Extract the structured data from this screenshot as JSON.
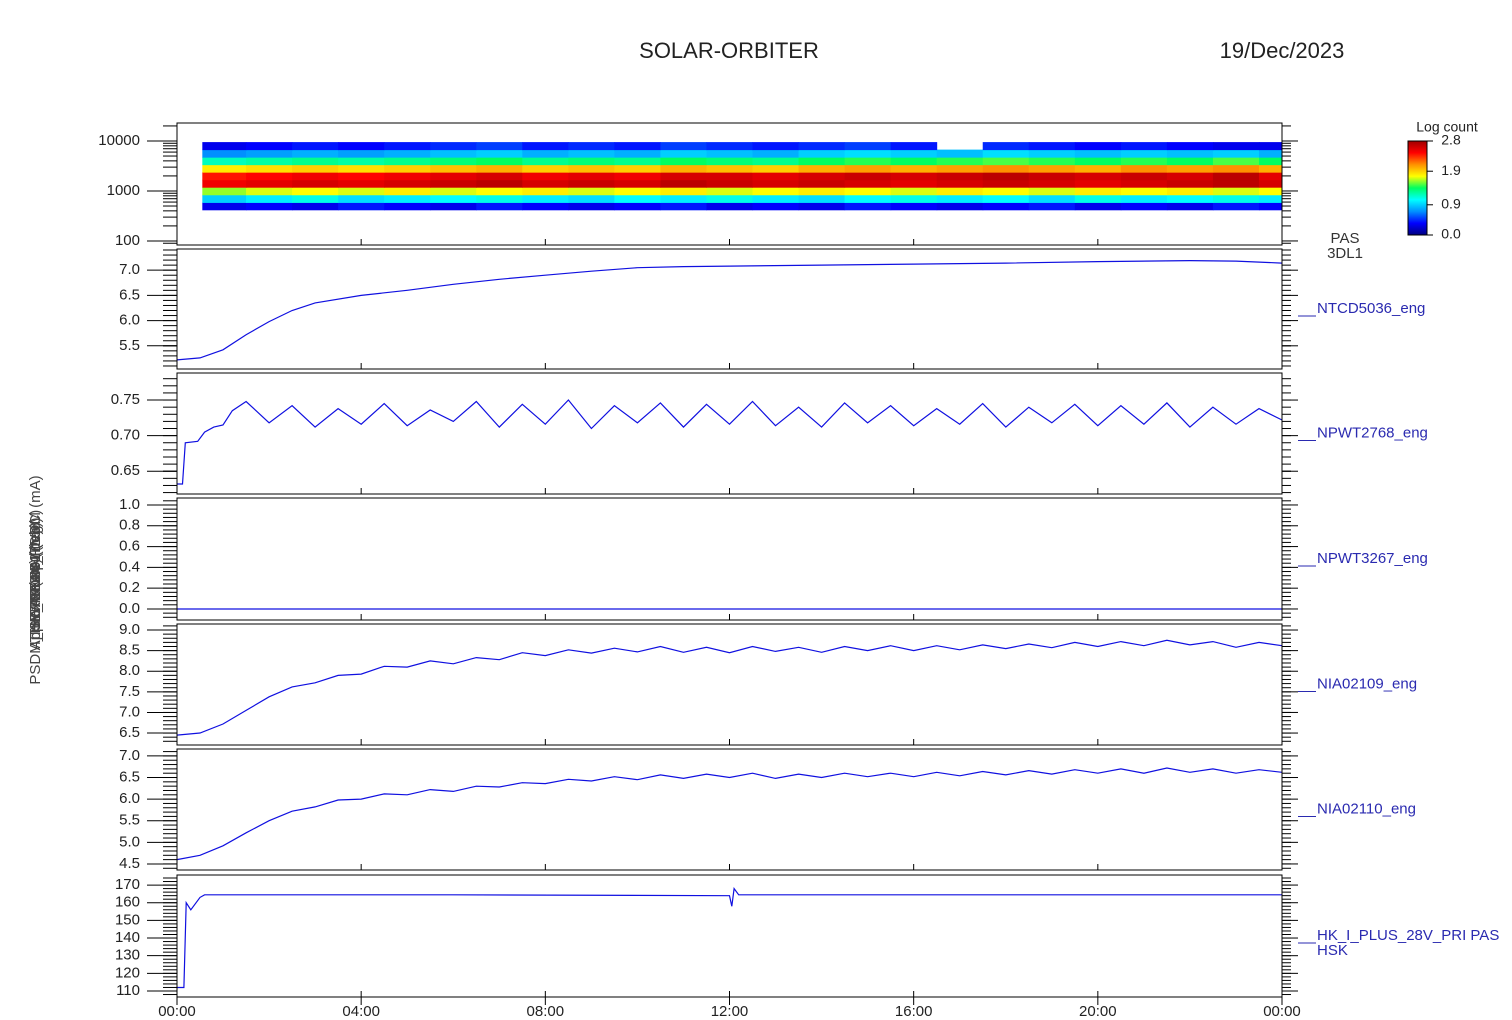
{
  "header": {
    "title": "SOLAR-ORBITER",
    "date": "19/Dec/2023"
  },
  "chart_data": [
    {
      "type": "heatmap",
      "label": [
        "PAS",
        "3DL1"
      ],
      "ylabel": "E (eV)",
      "ylog": true,
      "ylim": [
        83,
        22900
      ],
      "yticks": [
        100,
        1000,
        10000
      ],
      "xlim": [
        0,
        24
      ],
      "bins": [
        0.55,
        1.5,
        2.5,
        3.5,
        4.5,
        5.5,
        6.5,
        7.5,
        8.5,
        9.5,
        10.5,
        11.5,
        12.5,
        13.5,
        14.5,
        15.5,
        16.5,
        17.5,
        18.5,
        19.5,
        20.5,
        21.5,
        22.5,
        23.5,
        24
      ],
      "ybins": [
        420,
        590,
        840,
        1190,
        1680,
        2380,
        3360,
        4750,
        6720,
        9500
      ],
      "z": [
        [
          0.3,
          0.35,
          0.3,
          0.4,
          0.35,
          0.3,
          0.4,
          0.35,
          0.3,
          0.35,
          0.4,
          0.3,
          0.35,
          0.3,
          0.4,
          0.35,
          0.3,
          0.35,
          0.4,
          0.3,
          0.35,
          0.3,
          0.4,
          0.35
        ],
        [
          0.9,
          1.0,
          1.1,
          0.95,
          1.0,
          1.05,
          1.1,
          1.0,
          0.95,
          1.05,
          1.0,
          1.1,
          1.0,
          0.95,
          1.05,
          1.1,
          1.0,
          1.05,
          0.95,
          1.1,
          1.0,
          1.05,
          1.1,
          1.0
        ],
        [
          1.6,
          1.7,
          1.75,
          1.7,
          1.8,
          1.7,
          1.75,
          1.8,
          1.7,
          1.75,
          1.8,
          1.7,
          1.75,
          1.8,
          1.75,
          1.7,
          1.8,
          1.75,
          1.7,
          1.8,
          1.75,
          1.8,
          1.7,
          1.75
        ],
        [
          2.5,
          2.55,
          2.6,
          2.55,
          2.6,
          2.65,
          2.7,
          2.6,
          2.65,
          2.6,
          2.7,
          2.65,
          2.6,
          2.65,
          2.6,
          2.55,
          2.6,
          2.65,
          2.6,
          2.55,
          2.6,
          2.65,
          2.7,
          2.6
        ],
        [
          2.4,
          2.45,
          2.5,
          2.45,
          2.5,
          2.55,
          2.6,
          2.5,
          2.55,
          2.5,
          2.6,
          2.6,
          2.55,
          2.6,
          2.65,
          2.6,
          2.65,
          2.7,
          2.65,
          2.6,
          2.65,
          2.6,
          2.7,
          2.55
        ],
        [
          1.8,
          1.85,
          1.9,
          1.85,
          1.9,
          1.95,
          2.0,
          1.9,
          1.95,
          1.9,
          2.0,
          1.95,
          1.9,
          2.0,
          2.05,
          2.0,
          2.05,
          2.1,
          2.05,
          2.0,
          2.1,
          2.05,
          2.1,
          2.0
        ],
        [
          1.2,
          1.25,
          1.3,
          1.25,
          1.3,
          1.35,
          1.4,
          1.3,
          1.35,
          1.3,
          1.4,
          1.35,
          1.3,
          1.4,
          1.45,
          1.4,
          1.45,
          1.5,
          1.45,
          1.4,
          1.45,
          1.4,
          1.5,
          1.4
        ],
        [
          0.7,
          0.75,
          0.8,
          0.75,
          0.8,
          0.85,
          0.9,
          0.8,
          0.85,
          0.8,
          0.9,
          0.85,
          0.8,
          0.9,
          0.95,
          0.9,
          0.85,
          0.95,
          0.9,
          0.85,
          0.9,
          0.85,
          0.9,
          0.8
        ],
        [
          0.3,
          0.35,
          0.4,
          0.35,
          0.4,
          0.45,
          0.5,
          0.4,
          0.45,
          0.4,
          0.5,
          0.45,
          0.4,
          0.45,
          0.5,
          0.4,
          null,
          0.45,
          0.4,
          0.35,
          0.4,
          0.35,
          0.3,
          0.3
        ]
      ],
      "zlabel": "Log count",
      "zlim": [
        0,
        2.8
      ],
      "zticks": [
        {
          "value": 0,
          "label": "0.0"
        },
        0.9,
        1.9,
        2.8
      ],
      "colors": [
        "#000080",
        "#0000ff",
        "#0090ff",
        "#00ffff",
        "#00ff60",
        "#ffff00",
        "#ff9000",
        "#ff0000",
        "#a00000"
      ]
    },
    {
      "type": "line",
      "label": [
        "NTCD5036_eng"
      ],
      "ylabel": "Approx Temp (DegC)",
      "ylim": [
        5.04,
        7.42
      ],
      "yticks": [
        5.5,
        {
          "value": 6,
          "label": "6.0"
        },
        6.5,
        {
          "value": 7,
          "label": "7.0"
        }
      ],
      "xlim": [
        0,
        24
      ],
      "x": [
        0,
        0.5,
        1,
        1.5,
        2,
        2.5,
        3,
        4,
        5,
        6,
        7,
        8,
        9,
        10,
        11,
        12,
        14,
        16,
        18,
        20,
        22,
        23,
        24
      ],
      "series": [
        {
          "color": "#1010e0",
          "values": [
            5.22,
            5.26,
            5.42,
            5.72,
            5.98,
            6.2,
            6.35,
            6.5,
            6.6,
            6.72,
            6.82,
            6.9,
            6.98,
            7.05,
            7.07,
            7.08,
            7.1,
            7.12,
            7.14,
            7.17,
            7.19,
            7.18,
            7.14
          ]
        }
      ]
    },
    {
      "type": "line",
      "label": [
        "NPWT2768_eng"
      ],
      "ylabel": "SWA-EAS1 (V)",
      "ylim": [
        0.618,
        0.788
      ],
      "yticks": [
        0.65,
        {
          "value": 0.7,
          "label": "0.70"
        },
        0.75
      ],
      "xlim": [
        0,
        24
      ],
      "x": [
        0,
        0.12,
        0.18,
        0.45,
        0.6,
        0.8,
        1.0,
        1.2,
        1.5,
        2,
        2.5,
        3,
        3.5,
        4,
        4.5,
        5,
        5.5,
        6,
        6.5,
        7,
        7.5,
        8,
        8.5,
        9,
        9.5,
        10,
        10.5,
        11,
        11.5,
        12,
        12.5,
        13,
        13.5,
        14,
        14.5,
        15,
        15.5,
        16,
        16.5,
        17,
        17.5,
        18,
        18.5,
        19,
        19.5,
        20,
        20.5,
        21,
        21.5,
        22,
        22.5,
        23,
        23.5,
        24
      ],
      "series": [
        {
          "color": "#1010e0",
          "values": [
            0.632,
            0.632,
            0.69,
            0.692,
            0.705,
            0.712,
            0.715,
            0.735,
            0.748,
            0.718,
            0.742,
            0.712,
            0.738,
            0.716,
            0.745,
            0.714,
            0.736,
            0.72,
            0.748,
            0.712,
            0.744,
            0.716,
            0.75,
            0.71,
            0.742,
            0.718,
            0.746,
            0.712,
            0.744,
            0.716,
            0.748,
            0.714,
            0.74,
            0.712,
            0.746,
            0.718,
            0.742,
            0.714,
            0.738,
            0.716,
            0.745,
            0.712,
            0.74,
            0.718,
            0.744,
            0.714,
            0.742,
            0.716,
            0.746,
            0.712,
            0.74,
            0.716,
            0.738,
            0.722
          ]
        }
      ]
    },
    {
      "type": "line",
      "label": [
        "NPWT3267_eng"
      ],
      "ylabel": "SWA-EAS2 (V)",
      "ylim": [
        -0.106,
        1.067
      ],
      "yticks": [
        {
          "value": 0,
          "label": "0.0"
        },
        0.2,
        0.4,
        0.6,
        0.8,
        {
          "value": 1,
          "label": "1.0"
        }
      ],
      "xlim": [
        0,
        24
      ],
      "x": [
        0,
        24
      ],
      "series": [
        {
          "color": "#1010e0",
          "values": [
            0,
            0
          ]
        }
      ]
    },
    {
      "type": "line",
      "label": [
        "NIA02109_eng"
      ],
      "ylabel": "THERM CA4 (nc6)",
      "ylim": [
        6.21,
        9.146
      ],
      "yticks": [
        6.5,
        {
          "value": 7,
          "label": "7.0"
        },
        7.5,
        {
          "value": 8,
          "label": "8.0"
        },
        8.5,
        {
          "value": 9,
          "label": "9.0"
        }
      ],
      "xlim": [
        0,
        24
      ],
      "x": [
        0,
        0.5,
        1,
        1.5,
        2,
        2.5,
        3,
        3.5,
        4,
        4.5,
        5,
        5.5,
        6,
        6.5,
        7,
        7.5,
        8,
        8.5,
        9,
        9.5,
        10,
        10.5,
        11,
        11.5,
        12,
        12.5,
        13,
        13.5,
        14,
        14.5,
        15,
        15.5,
        16,
        16.5,
        17,
        17.5,
        18,
        18.5,
        19,
        19.5,
        20,
        20.5,
        21,
        21.5,
        22,
        22.5,
        23,
        23.5,
        24
      ],
      "series": [
        {
          "color": "#1010e0",
          "values": [
            6.45,
            6.5,
            6.72,
            7.05,
            7.38,
            7.62,
            7.72,
            7.9,
            7.93,
            8.12,
            8.1,
            8.25,
            8.18,
            8.33,
            8.28,
            8.45,
            8.38,
            8.52,
            8.44,
            8.56,
            8.47,
            8.6,
            8.46,
            8.58,
            8.45,
            8.6,
            8.48,
            8.58,
            8.46,
            8.6,
            8.5,
            8.62,
            8.5,
            8.62,
            8.52,
            8.64,
            8.55,
            8.66,
            8.57,
            8.7,
            8.6,
            8.72,
            8.62,
            8.75,
            8.64,
            8.72,
            8.58,
            8.7,
            8.62
          ]
        }
      ]
    },
    {
      "type": "line",
      "label": [
        "NIA02110_eng"
      ],
      "ylabel": "THERM CA (nc5)",
      "ylim": [
        4.36,
        7.16
      ],
      "yticks": [
        4.5,
        {
          "value": 5,
          "label": "5.0"
        },
        5.5,
        {
          "value": 6,
          "label": "6.0"
        },
        6.5,
        {
          "value": 7,
          "label": "7.0"
        }
      ],
      "xlim": [
        0,
        24
      ],
      "x": [
        0,
        0.5,
        1,
        1.5,
        2,
        2.5,
        3,
        3.5,
        4,
        4.5,
        5,
        5.5,
        6,
        6.5,
        7,
        7.5,
        8,
        8.5,
        9,
        9.5,
        10,
        10.5,
        11,
        11.5,
        12,
        12.5,
        13,
        13.5,
        14,
        14.5,
        15,
        15.5,
        16,
        16.5,
        17,
        17.5,
        18,
        18.5,
        19,
        19.5,
        20,
        20.5,
        21,
        21.5,
        22,
        22.5,
        23,
        23.5,
        24
      ],
      "series": [
        {
          "color": "#1010e0",
          "values": [
            4.6,
            4.7,
            4.92,
            5.22,
            5.5,
            5.72,
            5.82,
            5.98,
            6.0,
            6.12,
            6.1,
            6.22,
            6.18,
            6.3,
            6.28,
            6.38,
            6.36,
            6.46,
            6.42,
            6.52,
            6.45,
            6.56,
            6.48,
            6.58,
            6.5,
            6.6,
            6.48,
            6.58,
            6.5,
            6.6,
            6.52,
            6.6,
            6.52,
            6.62,
            6.54,
            6.64,
            6.56,
            6.66,
            6.58,
            6.68,
            6.6,
            6.7,
            6.6,
            6.72,
            6.62,
            6.7,
            6.6,
            6.68,
            6.62
          ]
        }
      ]
    },
    {
      "type": "line",
      "label": [
        "HK_I_PLUS_28V_PRI PAS",
        "HSK"
      ],
      "ylabel": "PSDM_HK_IMON_PDDM (mA)",
      "ylim": [
        106.6,
        175.7
      ],
      "yticks": [
        110,
        120,
        130,
        140,
        150,
        160,
        170
      ],
      "xlim": [
        0,
        24
      ],
      "xticks": [
        {
          "value": 0,
          "label": "00:00"
        },
        {
          "value": 4,
          "label": "04:00"
        },
        {
          "value": 8,
          "label": "08:00"
        },
        {
          "value": 12,
          "label": "12:00"
        },
        {
          "value": 16,
          "label": "16:00"
        },
        {
          "value": 20,
          "label": "20:00"
        },
        {
          "value": 24,
          "label": "00:00"
        }
      ],
      "x": [
        0,
        0.15,
        0.2,
        0.3,
        0.5,
        0.6,
        6,
        12,
        12.05,
        12.1,
        12.2,
        18,
        24
      ],
      "series": [
        {
          "color": "#1010e0",
          "values": [
            112,
            112,
            160,
            156,
            163,
            164.5,
            164.5,
            164,
            158,
            168,
            164.5,
            164.5,
            164.5
          ]
        }
      ]
    }
  ]
}
